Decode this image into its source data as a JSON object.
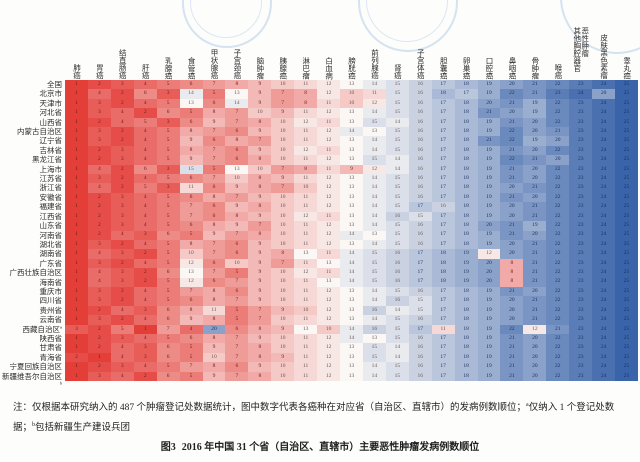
{
  "style": {
    "watermark_color": "#82afdb",
    "page_background": "#fdfdfc"
  },
  "notes": {
    "main": "注：仅根据本研究纳入的 487 个肿瘤登记处数据统计，图中数字代表各癌种在对应省（自治区、直辖市）的发病例数顺位；",
    "sup_a": "a",
    "a": "仅纳入 1 个登记处数据；",
    "sup_b": "b",
    "b": "包括新疆生产建设兵团"
  },
  "caption": {
    "label": "图3",
    "text": "2016 年中国 31 个省（自治区、直辖市）主要恶性肿瘤发病例数顺位"
  },
  "chart_data": {
    "type": "heatmap",
    "title": "图3 2016 年中国 31 个省（自治区、直辖市）主要恶性肿瘤发病例数顺位",
    "value_meaning": "发病例数顺位（1 = 发病例数最多，25 = 最少）",
    "color_scale": {
      "min": 1,
      "mid": 13,
      "max": 25,
      "min_color": "#e43e39",
      "mid_color": "#faf7f5",
      "max_color": "#3a64aa"
    },
    "columns": [
      "肺癌",
      "胃癌",
      "结直肠癌",
      "肝癌",
      "乳腺癌",
      "食管癌",
      "甲状腺癌",
      "子宫颈癌",
      "脑肿瘤",
      "胰腺癌",
      "淋巴瘤",
      "白血病",
      "膀胱癌",
      "前列腺癌",
      "肾癌",
      "子宫体癌",
      "胆囊癌",
      "卵巢癌",
      "口腔癌",
      "鼻咽癌",
      "骨肿瘤",
      "喉癌",
      "其他胸腔器官恶性肿瘤",
      "皮肤黑色素瘤",
      "睾丸癌"
    ],
    "rows": [
      {
        "label": "全国",
        "sup": ""
      },
      {
        "label": "北京市",
        "sup": ""
      },
      {
        "label": "天津市",
        "sup": ""
      },
      {
        "label": "河北省",
        "sup": ""
      },
      {
        "label": "山西省",
        "sup": ""
      },
      {
        "label": "内蒙古自治区",
        "sup": ""
      },
      {
        "label": "辽宁省",
        "sup": ""
      },
      {
        "label": "吉林省",
        "sup": ""
      },
      {
        "label": "黑龙江省",
        "sup": ""
      },
      {
        "label": "上海市",
        "sup": ""
      },
      {
        "label": "江苏省",
        "sup": ""
      },
      {
        "label": "浙江省",
        "sup": ""
      },
      {
        "label": "安徽省",
        "sup": ""
      },
      {
        "label": "福建省",
        "sup": ""
      },
      {
        "label": "江西省",
        "sup": ""
      },
      {
        "label": "山东省",
        "sup": ""
      },
      {
        "label": "河南省",
        "sup": ""
      },
      {
        "label": "湖北省",
        "sup": ""
      },
      {
        "label": "湖南省",
        "sup": ""
      },
      {
        "label": "广东省",
        "sup": ""
      },
      {
        "label": "广西壮族自治区",
        "sup": ""
      },
      {
        "label": "海南省",
        "sup": ""
      },
      {
        "label": "重庆市",
        "sup": ""
      },
      {
        "label": "四川省",
        "sup": ""
      },
      {
        "label": "贵州省",
        "sup": ""
      },
      {
        "label": "云南省",
        "sup": ""
      },
      {
        "label": "西藏自治区",
        "sup": "a"
      },
      {
        "label": "陕西省",
        "sup": ""
      },
      {
        "label": "甘肃省",
        "sup": ""
      },
      {
        "label": "青海省",
        "sup": ""
      },
      {
        "label": "宁夏回族自治区",
        "sup": ""
      },
      {
        "label": "新疆维吾尔自治区",
        "sup": "b"
      }
    ],
    "values": [
      [
        1,
        2,
        3,
        4,
        5,
        6,
        7,
        8,
        9,
        10,
        11,
        12,
        13,
        14,
        15,
        16,
        17,
        18,
        19,
        20,
        21,
        22,
        23,
        24,
        25
      ],
      [
        1,
        4,
        2,
        6,
        3,
        14,
        5,
        13,
        9,
        7,
        8,
        12,
        10,
        11,
        15,
        16,
        18,
        17,
        19,
        22,
        21,
        23,
        24,
        20,
        25
      ],
      [
        1,
        3,
        2,
        4,
        5,
        13,
        6,
        14,
        9,
        7,
        8,
        11,
        10,
        12,
        15,
        16,
        17,
        18,
        20,
        21,
        19,
        22,
        23,
        24,
        25
      ],
      [
        1,
        3,
        4,
        2,
        6,
        5,
        8,
        7,
        10,
        9,
        11,
        12,
        13,
        14,
        15,
        16,
        17,
        18,
        21,
        20,
        19,
        22,
        23,
        24,
        25
      ],
      [
        1,
        2,
        4,
        5,
        3,
        6,
        9,
        7,
        8,
        10,
        12,
        11,
        13,
        15,
        14,
        16,
        17,
        18,
        19,
        21,
        20,
        22,
        23,
        24,
        25
      ],
      [
        1,
        3,
        2,
        4,
        5,
        8,
        7,
        6,
        9,
        10,
        11,
        12,
        14,
        13,
        15,
        16,
        17,
        18,
        19,
        22,
        20,
        21,
        23,
        24,
        25
      ],
      [
        1,
        3,
        2,
        4,
        5,
        9,
        6,
        8,
        7,
        10,
        11,
        12,
        13,
        14,
        15,
        16,
        17,
        18,
        21,
        22,
        19,
        20,
        23,
        24,
        25
      ],
      [
        1,
        2,
        3,
        4,
        5,
        8,
        7,
        6,
        9,
        10,
        12,
        11,
        13,
        14,
        15,
        16,
        17,
        18,
        19,
        21,
        20,
        22,
        23,
        24,
        25
      ],
      [
        1,
        2,
        3,
        4,
        5,
        9,
        7,
        6,
        8,
        10,
        11,
        12,
        13,
        15,
        14,
        16,
        17,
        18,
        19,
        22,
        21,
        20,
        23,
        24,
        25
      ],
      [
        1,
        4,
        2,
        6,
        3,
        15,
        5,
        13,
        10,
        7,
        8,
        11,
        9,
        12,
        14,
        16,
        17,
        18,
        19,
        21,
        20,
        22,
        23,
        24,
        25
      ],
      [
        1,
        3,
        2,
        4,
        5,
        6,
        7,
        10,
        8,
        9,
        11,
        12,
        13,
        14,
        15,
        16,
        17,
        18,
        19,
        21,
        20,
        22,
        23,
        24,
        25
      ],
      [
        1,
        4,
        2,
        5,
        3,
        11,
        6,
        9,
        8,
        7,
        10,
        12,
        13,
        14,
        15,
        16,
        17,
        18,
        19,
        20,
        21,
        22,
        23,
        24,
        25
      ],
      [
        1,
        2,
        3,
        4,
        5,
        6,
        8,
        7,
        9,
        10,
        11,
        12,
        13,
        14,
        15,
        16,
        17,
        18,
        19,
        21,
        20,
        22,
        23,
        24,
        25
      ],
      [
        1,
        2,
        3,
        4,
        5,
        7,
        6,
        9,
        8,
        10,
        11,
        12,
        13,
        14,
        15,
        17,
        16,
        18,
        19,
        20,
        21,
        22,
        23,
        24,
        25
      ],
      [
        1,
        2,
        3,
        4,
        5,
        7,
        6,
        8,
        9,
        10,
        12,
        11,
        13,
        14,
        16,
        15,
        17,
        18,
        19,
        20,
        21,
        22,
        23,
        24,
        25
      ],
      [
        1,
        2,
        3,
        4,
        5,
        6,
        8,
        9,
        7,
        10,
        11,
        12,
        13,
        14,
        15,
        16,
        17,
        18,
        20,
        21,
        19,
        22,
        23,
        24,
        25
      ],
      [
        1,
        2,
        4,
        3,
        6,
        5,
        9,
        7,
        8,
        10,
        11,
        12,
        14,
        13,
        15,
        16,
        17,
        18,
        19,
        21,
        20,
        22,
        23,
        24,
        25
      ],
      [
        1,
        3,
        2,
        4,
        5,
        8,
        7,
        6,
        9,
        10,
        11,
        12,
        13,
        14,
        15,
        16,
        17,
        18,
        19,
        20,
        21,
        22,
        23,
        24,
        25
      ],
      [
        1,
        4,
        3,
        2,
        5,
        10,
        7,
        6,
        9,
        8,
        13,
        11,
        14,
        15,
        16,
        17,
        18,
        19,
        12,
        20,
        21,
        22,
        23,
        24,
        25
      ],
      [
        1,
        3,
        2,
        4,
        5,
        12,
        6,
        10,
        9,
        7,
        11,
        13,
        14,
        15,
        16,
        17,
        18,
        19,
        20,
        8,
        21,
        22,
        23,
        24,
        25
      ],
      [
        1,
        4,
        3,
        2,
        6,
        13,
        7,
        5,
        9,
        10,
        12,
        11,
        14,
        15,
        16,
        17,
        18,
        19,
        20,
        8,
        21,
        22,
        23,
        24,
        25
      ],
      [
        1,
        4,
        3,
        2,
        5,
        12,
        6,
        7,
        9,
        10,
        11,
        13,
        14,
        15,
        16,
        17,
        18,
        19,
        20,
        8,
        21,
        22,
        23,
        24,
        25
      ],
      [
        1,
        3,
        2,
        4,
        5,
        7,
        8,
        6,
        9,
        10,
        11,
        12,
        13,
        14,
        15,
        16,
        17,
        18,
        19,
        21,
        20,
        22,
        23,
        24,
        25
      ],
      [
        1,
        3,
        2,
        4,
        5,
        6,
        8,
        7,
        9,
        10,
        11,
        12,
        13,
        14,
        16,
        15,
        17,
        18,
        19,
        20,
        21,
        22,
        23,
        24,
        25
      ],
      [
        1,
        2,
        4,
        3,
        6,
        8,
        11,
        5,
        7,
        9,
        10,
        12,
        13,
        16,
        14,
        15,
        17,
        18,
        19,
        20,
        21,
        22,
        23,
        24,
        25
      ],
      [
        1,
        3,
        2,
        4,
        6,
        9,
        8,
        5,
        7,
        10,
        11,
        12,
        13,
        14,
        15,
        16,
        17,
        18,
        19,
        20,
        21,
        22,
        23,
        24,
        25
      ],
      [
        3,
        2,
        5,
        1,
        7,
        4,
        20,
        6,
        8,
        9,
        13,
        10,
        14,
        16,
        15,
        17,
        11,
        18,
        19,
        22,
        12,
        21,
        23,
        24,
        25
      ],
      [
        1,
        2,
        3,
        4,
        5,
        6,
        8,
        7,
        9,
        10,
        11,
        12,
        14,
        13,
        15,
        16,
        17,
        18,
        19,
        21,
        20,
        22,
        23,
        24,
        25
      ],
      [
        1,
        2,
        4,
        3,
        6,
        5,
        9,
        7,
        8,
        10,
        11,
        12,
        13,
        15,
        14,
        16,
        17,
        18,
        19,
        21,
        20,
        22,
        23,
        24,
        25
      ],
      [
        2,
        1,
        4,
        3,
        6,
        5,
        10,
        7,
        8,
        9,
        11,
        12,
        13,
        15,
        14,
        16,
        17,
        18,
        19,
        21,
        20,
        22,
        23,
        24,
        25
      ],
      [
        1,
        2,
        3,
        4,
        5,
        7,
        8,
        6,
        9,
        10,
        11,
        12,
        13,
        14,
        15,
        16,
        17,
        18,
        19,
        21,
        20,
        22,
        23,
        24,
        25
      ],
      [
        1,
        3,
        4,
        2,
        6,
        5,
        9,
        7,
        8,
        10,
        11,
        12,
        13,
        14,
        15,
        16,
        17,
        18,
        19,
        21,
        20,
        22,
        23,
        24,
        25
      ]
    ]
  }
}
